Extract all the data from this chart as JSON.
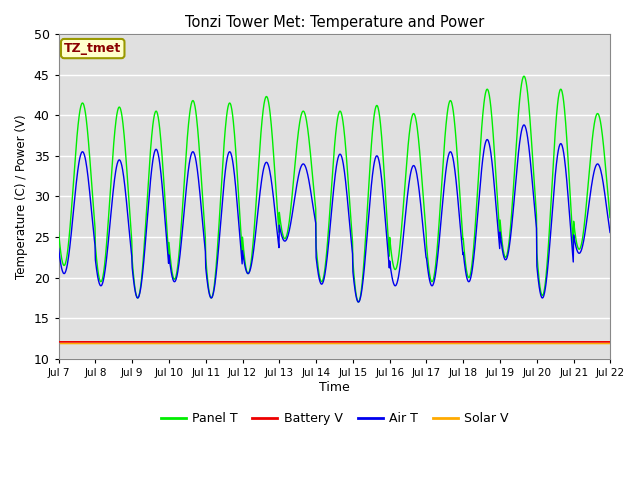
{
  "title": "Tonzi Tower Met: Temperature and Power",
  "xlabel": "Time",
  "ylabel": "Temperature (C) / Power (V)",
  "ylim": [
    10,
    50
  ],
  "yticks": [
    10,
    15,
    20,
    25,
    30,
    35,
    40,
    45,
    50
  ],
  "n_days": 15,
  "x_tick_labels": [
    "Jul 7",
    "Jul 8",
    "Jul 9",
    "Jul 10",
    "Jul 11",
    "Jul 12",
    "Jul 13",
    "Jul 14",
    "Jul 15",
    "Jul 16",
    "Jul 17",
    "Jul 18",
    "Jul 19",
    "Jul 20",
    "Jul 21",
    "Jul 22"
  ],
  "fig_bg_color": "#ffffff",
  "axes_bg_color": "#e0e0e0",
  "grid_color": "#ffffff",
  "label_box_text": "TZ_tmet",
  "label_box_facecolor": "#ffffcc",
  "label_box_edgecolor": "#999900",
  "label_box_textcolor": "#8b0000",
  "legend_items": [
    {
      "label": "Panel T",
      "color": "#00ee00"
    },
    {
      "label": "Battery V",
      "color": "#ee0000"
    },
    {
      "label": "Air T",
      "color": "#0000ee"
    },
    {
      "label": "Solar V",
      "color": "#ffaa00"
    }
  ],
  "panel_t_peaks": [
    41.5,
    41.0,
    40.5,
    41.8,
    41.5,
    42.3,
    40.5,
    40.5,
    41.2,
    40.2,
    41.8,
    43.2,
    44.8,
    43.2,
    40.2
  ],
  "panel_t_troughs": [
    21.5,
    19.5,
    17.5,
    19.8,
    17.5,
    20.5,
    24.8,
    19.5,
    17.0,
    21.0,
    19.5,
    20.0,
    22.5,
    17.8,
    23.5
  ],
  "air_t_peaks": [
    35.5,
    34.5,
    35.8,
    35.5,
    35.5,
    34.2,
    34.0,
    35.2,
    35.0,
    33.8,
    35.5,
    37.0,
    38.8,
    36.5,
    34.0
  ],
  "air_t_troughs": [
    20.5,
    19.0,
    17.5,
    19.5,
    17.5,
    20.5,
    24.5,
    19.2,
    17.0,
    19.0,
    19.0,
    19.5,
    22.2,
    17.5,
    23.0
  ],
  "battery_v": 12.1,
  "solar_v": 11.9,
  "pts_per_day": 96
}
